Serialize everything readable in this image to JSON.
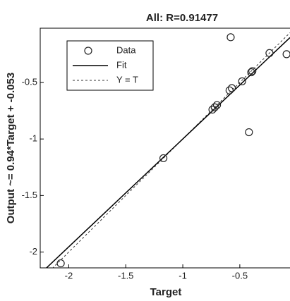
{
  "chart_data": {
    "type": "scatter",
    "title": "All: R=0.91477",
    "xlabel": "Target",
    "ylabel": "Output ~= 0.94*Target + -0.053",
    "series": [
      {
        "name": "Data",
        "color": "#222222",
        "x": [
          -2.07,
          -1.17,
          -0.74,
          -0.72,
          -0.7,
          -0.59,
          -0.57,
          -0.48,
          -0.4,
          -0.39,
          -0.24,
          -0.09,
          -0.58,
          -0.42
        ],
        "values": [
          -2.1,
          -1.17,
          -0.74,
          -0.72,
          -0.7,
          -0.57,
          -0.55,
          -0.49,
          -0.41,
          -0.4,
          -0.24,
          -0.25,
          -0.1,
          -0.94
        ]
      }
    ],
    "fit_name": "Fit",
    "identity_name": "Y = T",
    "xlim": [
      -2.25,
      -0.06
    ],
    "ylim": [
      -2.14,
      -0.02
    ],
    "xticks": [
      -2,
      -1.5,
      -1,
      -0.5
    ],
    "yticks": [
      -2,
      -1.5,
      -1,
      -0.5
    ],
    "legend": "upper left"
  }
}
